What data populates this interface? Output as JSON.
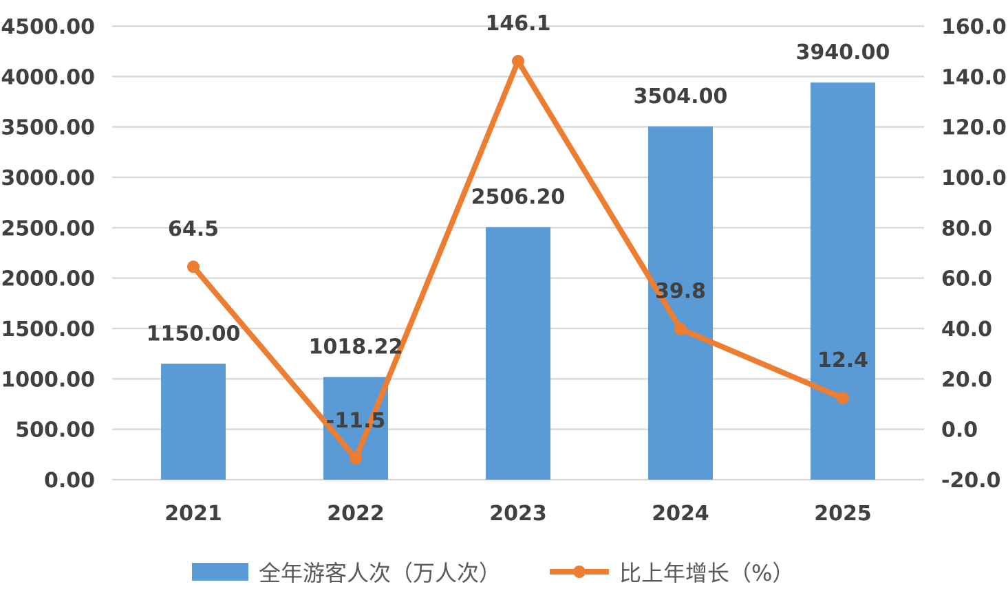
{
  "chart_data": {
    "type": "bar",
    "categories": [
      "2021",
      "2022",
      "2023",
      "2024",
      "2025"
    ],
    "series": [
      {
        "name": "全年游客人次（万人次）",
        "kind": "bar",
        "axis": "left",
        "color": "#5B9BD5",
        "values": [
          1150.0,
          1018.22,
          2506.2,
          3504.0,
          3940.0
        ],
        "labels": [
          "1150.00",
          "1018.22",
          "2506.20",
          "3504.00",
          "3940.00"
        ]
      },
      {
        "name": "比上年增长（%）",
        "kind": "line",
        "axis": "right",
        "color": "#ED7D31",
        "values": [
          64.5,
          -11.5,
          146.1,
          39.8,
          12.4
        ],
        "labels": [
          "64.5",
          "-11.5",
          "146.1",
          "39.8",
          "12.4"
        ]
      }
    ],
    "y_left": {
      "ylim": [
        0,
        4500
      ],
      "ticks": [
        "0.00",
        "500.00",
        "1000.00",
        "1500.00",
        "2000.00",
        "2500.00",
        "3000.00",
        "3500.00",
        "4000.00",
        "4500.00"
      ]
    },
    "y_right": {
      "ylim": [
        -20,
        160
      ],
      "ticks": [
        "-20.0",
        "0.0",
        "20.0",
        "40.0",
        "60.0",
        "80.0",
        "100.0",
        "120.0",
        "140.0",
        "160.0"
      ]
    },
    "grid": true,
    "legend": "bottom",
    "gridColor": "#D9D9D9"
  }
}
